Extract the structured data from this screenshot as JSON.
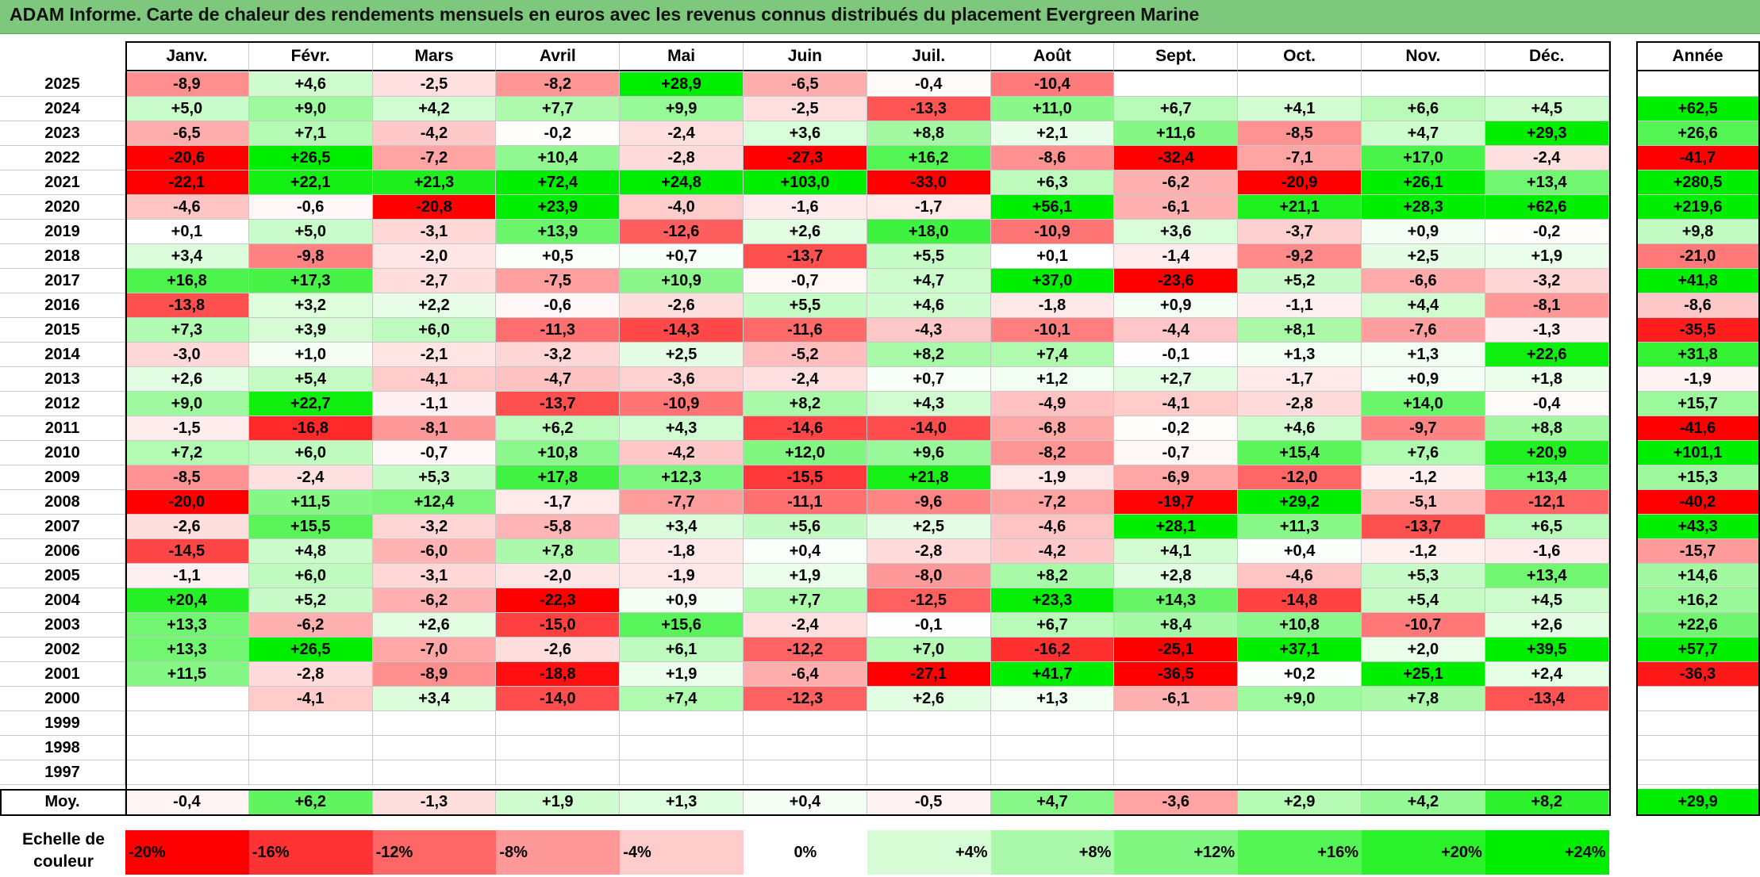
{
  "title": "ADAM Informe. Carte de chaleur des rendements mensuels en euros avec les revenus connus distribués du placement Evergreen Marine",
  "months": [
    "Janv.",
    "Févr.",
    "Mars",
    "Avril",
    "Mai",
    "Juin",
    "Juil.",
    "Août",
    "Sept.",
    "Oct.",
    "Nov.",
    "Déc."
  ],
  "annual_header": "Année",
  "rows": [
    {
      "year": "2025",
      "values": [
        "-8,9",
        "+4,6",
        "-2,5",
        "-8,2",
        "+28,9",
        "-6,5",
        "-0,4",
        "-10,4",
        "",
        "",
        "",
        ""
      ],
      "annual": ""
    },
    {
      "year": "2024",
      "values": [
        "+5,0",
        "+9,0",
        "+4,2",
        "+7,7",
        "+9,9",
        "-2,5",
        "-13,3",
        "+11,0",
        "+6,7",
        "+4,1",
        "+6,6",
        "+4,5"
      ],
      "annual": "+62,5"
    },
    {
      "year": "2023",
      "values": [
        "-6,5",
        "+7,1",
        "-4,2",
        "-0,2",
        "-2,4",
        "+3,6",
        "+8,8",
        "+2,1",
        "+11,6",
        "-8,5",
        "+4,7",
        "+29,3"
      ],
      "annual": "+26,6"
    },
    {
      "year": "2022",
      "values": [
        "-20,6",
        "+26,5",
        "-7,2",
        "+10,4",
        "-2,8",
        "-27,3",
        "+16,2",
        "-8,6",
        "-32,4",
        "-7,1",
        "+17,0",
        "-2,4"
      ],
      "annual": "-41,7"
    },
    {
      "year": "2021",
      "values": [
        "-22,1",
        "+22,1",
        "+21,3",
        "+72,4",
        "+24,8",
        "+103,0",
        "-33,0",
        "+6,3",
        "-6,2",
        "-20,9",
        "+26,1",
        "+13,4"
      ],
      "annual": "+280,5"
    },
    {
      "year": "2020",
      "values": [
        "-4,6",
        "-0,6",
        "-20,8",
        "+23,9",
        "-4,0",
        "-1,6",
        "-1,7",
        "+56,1",
        "-6,1",
        "+21,1",
        "+28,3",
        "+62,6"
      ],
      "annual": "+219,6"
    },
    {
      "year": "2019",
      "values": [
        "+0,1",
        "+5,0",
        "-3,1",
        "+13,9",
        "-12,6",
        "+2,6",
        "+18,0",
        "-10,9",
        "+3,6",
        "-3,7",
        "+0,9",
        "-0,2"
      ],
      "annual": "+9,8"
    },
    {
      "year": "2018",
      "values": [
        "+3,4",
        "-9,8",
        "-2,0",
        "+0,5",
        "+0,7",
        "-13,7",
        "+5,5",
        "+0,1",
        "-1,4",
        "-9,2",
        "+2,5",
        "+1,9"
      ],
      "annual": "-21,0"
    },
    {
      "year": "2017",
      "values": [
        "+16,8",
        "+17,3",
        "-2,7",
        "-7,5",
        "+10,9",
        "-0,7",
        "+4,7",
        "+37,0",
        "-23,6",
        "+5,2",
        "-6,6",
        "-3,2"
      ],
      "annual": "+41,8"
    },
    {
      "year": "2016",
      "values": [
        "-13,8",
        "+3,2",
        "+2,2",
        "-0,6",
        "-2,6",
        "+5,5",
        "+4,6",
        "-1,8",
        "+0,9",
        "-1,1",
        "+4,4",
        "-8,1"
      ],
      "annual": "-8,6"
    },
    {
      "year": "2015",
      "values": [
        "+7,3",
        "+3,9",
        "+6,0",
        "-11,3",
        "-14,3",
        "-11,6",
        "-4,3",
        "-10,1",
        "-4,4",
        "+8,1",
        "-7,6",
        "-1,3"
      ],
      "annual": "-35,5"
    },
    {
      "year": "2014",
      "values": [
        "-3,0",
        "+1,0",
        "-2,1",
        "-3,2",
        "+2,5",
        "-5,2",
        "+8,2",
        "+7,4",
        "-0,1",
        "+1,3",
        "+1,3",
        "+22,6"
      ],
      "annual": "+31,8"
    },
    {
      "year": "2013",
      "values": [
        "+2,6",
        "+5,4",
        "-4,1",
        "-4,7",
        "-3,6",
        "-2,4",
        "+0,7",
        "+1,2",
        "+2,7",
        "-1,7",
        "+0,9",
        "+1,8"
      ],
      "annual": "-1,9"
    },
    {
      "year": "2012",
      "values": [
        "+9,0",
        "+22,7",
        "-1,1",
        "-13,7",
        "-10,9",
        "+8,2",
        "+4,3",
        "-4,9",
        "-4,1",
        "-2,8",
        "+14,0",
        "-0,4"
      ],
      "annual": "+15,7"
    },
    {
      "year": "2011",
      "values": [
        "-1,5",
        "-16,8",
        "-8,1",
        "+6,2",
        "+4,3",
        "-14,6",
        "-14,0",
        "-6,8",
        "-0,2",
        "+4,6",
        "-9,7",
        "+8,8"
      ],
      "annual": "-41,6"
    },
    {
      "year": "2010",
      "values": [
        "+7,2",
        "+6,0",
        "-0,7",
        "+10,8",
        "-4,2",
        "+12,0",
        "+9,6",
        "-8,2",
        "-0,7",
        "+15,4",
        "+7,6",
        "+20,9"
      ],
      "annual": "+101,1"
    },
    {
      "year": "2009",
      "values": [
        "-8,5",
        "-2,4",
        "+5,3",
        "+17,8",
        "+12,3",
        "-15,5",
        "+21,8",
        "-1,9",
        "-6,9",
        "-12,0",
        "-1,2",
        "+13,4"
      ],
      "annual": "+15,3"
    },
    {
      "year": "2008",
      "values": [
        "-20,0",
        "+11,5",
        "+12,4",
        "-1,7",
        "-7,7",
        "-11,1",
        "-9,6",
        "-7,2",
        "-19,7",
        "+29,2",
        "-5,1",
        "-12,1"
      ],
      "annual": "-40,2"
    },
    {
      "year": "2007",
      "values": [
        "-2,6",
        "+15,5",
        "-3,2",
        "-5,8",
        "+3,4",
        "+5,6",
        "+2,5",
        "-4,6",
        "+28,1",
        "+11,3",
        "-13,7",
        "+6,5"
      ],
      "annual": "+43,3"
    },
    {
      "year": "2006",
      "values": [
        "-14,5",
        "+4,8",
        "-6,0",
        "+7,8",
        "-1,8",
        "+0,4",
        "-2,8",
        "-4,2",
        "+4,1",
        "+0,4",
        "-1,2",
        "-1,6"
      ],
      "annual": "-15,7"
    },
    {
      "year": "2005",
      "values": [
        "-1,1",
        "+6,0",
        "-3,1",
        "-2,0",
        "-1,9",
        "+1,9",
        "-8,0",
        "+8,2",
        "+2,8",
        "-4,6",
        "+5,3",
        "+13,4"
      ],
      "annual": "+14,6"
    },
    {
      "year": "2004",
      "values": [
        "+20,4",
        "+5,2",
        "-6,2",
        "-22,3",
        "+0,9",
        "+7,7",
        "-12,5",
        "+23,3",
        "+14,3",
        "-14,8",
        "+5,4",
        "+4,5"
      ],
      "annual": "+16,2"
    },
    {
      "year": "2003",
      "values": [
        "+13,3",
        "-6,2",
        "+2,6",
        "-15,0",
        "+15,6",
        "-2,4",
        "-0,1",
        "+6,7",
        "+8,4",
        "+10,8",
        "-10,7",
        "+2,6"
      ],
      "annual": "+22,6"
    },
    {
      "year": "2002",
      "values": [
        "+13,3",
        "+26,5",
        "-7,0",
        "-2,6",
        "+6,1",
        "-12,2",
        "+7,0",
        "-16,2",
        "-25,1",
        "+37,1",
        "+2,0",
        "+39,5"
      ],
      "annual": "+57,7"
    },
    {
      "year": "2001",
      "values": [
        "+11,5",
        "-2,8",
        "-8,9",
        "-18,8",
        "+1,9",
        "-6,4",
        "-27,1",
        "+41,7",
        "-36,5",
        "+0,2",
        "+25,1",
        "+2,4"
      ],
      "annual": "-36,3"
    },
    {
      "year": "2000",
      "values": [
        "",
        "-4,1",
        "+3,4",
        "-14,0",
        "+7,4",
        "-12,3",
        "+2,6",
        "+1,3",
        "-6,1",
        "+9,0",
        "+7,8",
        "-13,4"
      ],
      "annual": ""
    },
    {
      "year": "1999",
      "values": [
        "",
        "",
        "",
        "",
        "",
        "",
        "",
        "",
        "",
        "",
        "",
        ""
      ],
      "annual": ""
    },
    {
      "year": "1998",
      "values": [
        "",
        "",
        "",
        "",
        "",
        "",
        "",
        "",
        "",
        "",
        "",
        ""
      ],
      "annual": ""
    },
    {
      "year": "1997",
      "values": [
        "",
        "",
        "",
        "",
        "",
        "",
        "",
        "",
        "",
        "",
        "",
        ""
      ],
      "annual": ""
    }
  ],
  "average": {
    "label": "Moy.",
    "values": [
      "-0,4",
      "+6,2",
      "-1,3",
      "+1,9",
      "+1,3",
      "+0,4",
      "-0,5",
      "+4,7",
      "-3,6",
      "+2,9",
      "+4,2",
      "+8,2"
    ],
    "annual": "+29,9"
  },
  "scale": {
    "label_line1": "Echelle de",
    "label_line2": "couleur",
    "items": [
      "-20%",
      "-16%",
      "-12%",
      "-8%",
      "-4%",
      "0%",
      "+4%",
      "+8%",
      "+12%",
      "+16%",
      "+20%",
      "+24%"
    ]
  },
  "colors": {
    "negative_max": "#ff0000",
    "positive_max": "#00ee00",
    "neutral": "#ffffff",
    "title_bg": "#7ec87e"
  },
  "chart_data": {
    "type": "heatmap",
    "title": "ADAM Informe. Carte de chaleur des rendements mensuels en euros avec les revenus connus distribués du placement Evergreen Marine",
    "x": [
      "Janv.",
      "Févr.",
      "Mars",
      "Avril",
      "Mai",
      "Juin",
      "Juil.",
      "Août",
      "Sept.",
      "Oct.",
      "Nov.",
      "Déc."
    ],
    "y": [
      "2025",
      "2024",
      "2023",
      "2022",
      "2021",
      "2020",
      "2019",
      "2018",
      "2017",
      "2016",
      "2015",
      "2014",
      "2013",
      "2012",
      "2011",
      "2010",
      "2009",
      "2008",
      "2007",
      "2006",
      "2005",
      "2004",
      "2003",
      "2002",
      "2001",
      "2000",
      "1999",
      "1998",
      "1997"
    ],
    "color_scale": {
      "min": -20,
      "max": 24,
      "unit": "%"
    }
  }
}
